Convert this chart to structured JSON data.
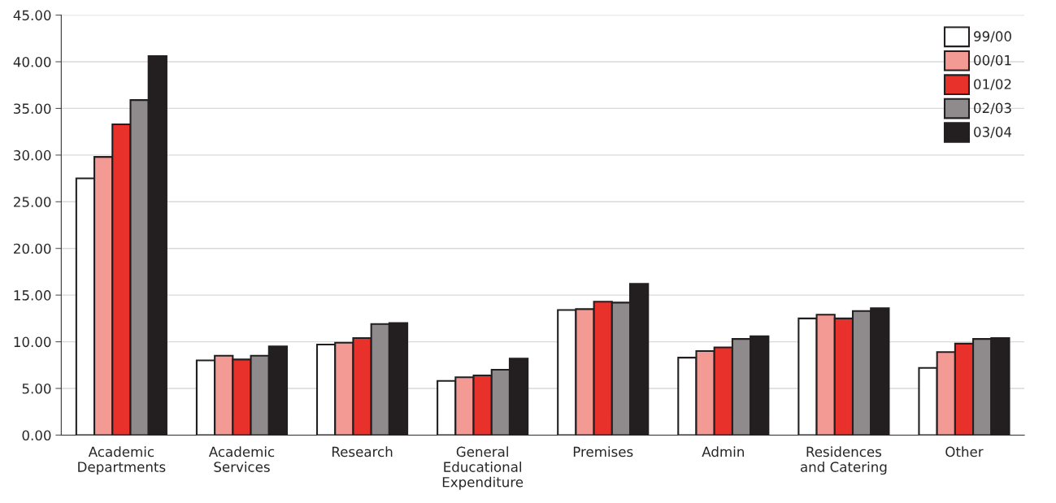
{
  "chart_data": {
    "type": "bar",
    "categories": [
      "Academic\nDepartments",
      "Academic\nServices",
      "Research",
      "General\nEducational\nExpenditure",
      "Premises",
      "Admin",
      "Residences\nand Catering",
      "Other"
    ],
    "series": [
      {
        "name": "99/00",
        "color": "#ffffff",
        "values": [
          27.5,
          8.0,
          9.7,
          5.8,
          13.4,
          8.3,
          12.5,
          7.2
        ]
      },
      {
        "name": "00/01",
        "color": "#f39a95",
        "values": [
          29.8,
          8.5,
          9.9,
          6.2,
          13.5,
          9.0,
          12.9,
          8.9
        ]
      },
      {
        "name": "01/02",
        "color": "#e8312a",
        "values": [
          33.3,
          8.1,
          10.4,
          6.4,
          14.3,
          9.4,
          12.5,
          9.8
        ]
      },
      {
        "name": "02/03",
        "color": "#8f8b8c",
        "values": [
          35.9,
          8.5,
          11.9,
          7.0,
          14.2,
          10.3,
          13.3,
          10.3
        ]
      },
      {
        "name": "03/04",
        "color": "#231f20",
        "values": [
          40.6,
          9.5,
          12.0,
          8.2,
          16.2,
          10.6,
          13.6,
          10.4
        ]
      }
    ],
    "ylim": [
      0,
      45
    ],
    "yticks": [
      {
        "value": 0,
        "label": "0.00"
      },
      {
        "value": 5,
        "label": "5.00"
      },
      {
        "value": 10,
        "label": "10.00"
      },
      {
        "value": 15,
        "label": "15.00"
      },
      {
        "value": 20,
        "label": "20.00"
      },
      {
        "value": 25,
        "label": "25.00"
      },
      {
        "value": 30,
        "label": "30.00"
      },
      {
        "value": 35,
        "label": "35.00"
      },
      {
        "value": 40,
        "label": "40.00"
      },
      {
        "value": 45,
        "label": "45.00"
      }
    ],
    "grid": "y",
    "legend": "top right"
  }
}
